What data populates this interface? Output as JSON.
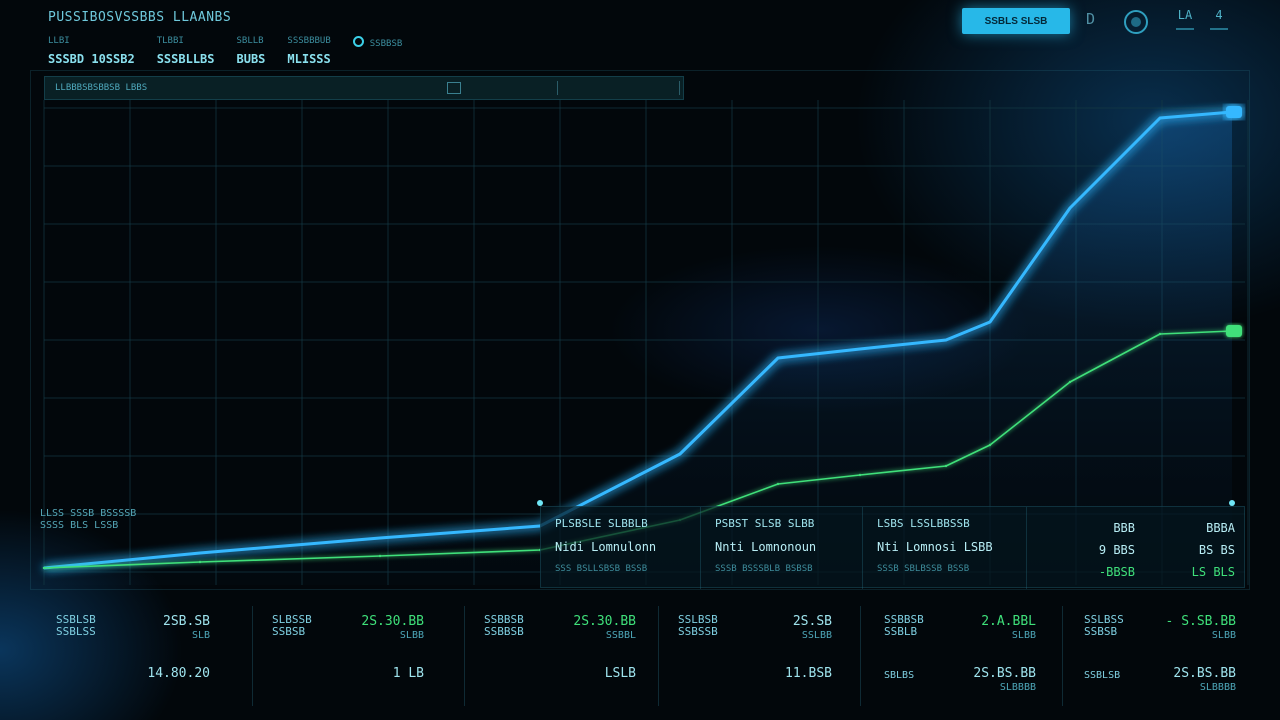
{
  "header": {
    "title": "PUSSIBOSVSSBBS LLAANBS",
    "stats": [
      {
        "label": "LLBI",
        "value": "SSSBD 10SSB2"
      },
      {
        "label": "TLBBI",
        "value": "SSSBLLBS"
      },
      {
        "label": "SBLLB",
        "value": "BUBS"
      },
      {
        "label": "SSSBBBUB",
        "value": "MLISSS"
      },
      {
        "label": "SSBBSB",
        "value": ""
      }
    ],
    "primary_button": "SSBLS SLSB",
    "d_icon": "D",
    "mini_a": "LA",
    "mini_b": "4"
  },
  "filter": {
    "text": "LLBBBSBSBBSB LBBS"
  },
  "axis": {
    "left_label_1": "LLSS SSSB BSSSSB",
    "left_label_2": "SSSS BLS LSSB"
  },
  "info_table": {
    "cells": [
      {
        "t1": "PLSBSLE SLBBLB",
        "t2": "Nidi Lomnulonn",
        "t3": "SSS BSLLSBSB BSSB"
      },
      {
        "t1": "PSBST SLSB SLBB",
        "t2": "Nnti Lomnonoun",
        "t3": "SSSB BSSSBLB BSBSB"
      },
      {
        "t1": "LSBS LSSLBBSSB",
        "t2": "Nti Lomnosi LSBB",
        "t3": "SSSB SBLBSSB BSSB"
      }
    ],
    "col_a": [
      "BBB",
      "9 BBS",
      "-BBSB"
    ],
    "col_b": [
      "BBBA",
      "BS BS",
      "LS BLS"
    ]
  },
  "kpis": [
    {
      "name": "SSBLSB SSBLSS",
      "big": "2SB.SB",
      "sub": "SLB",
      "bottom": "14.80.20",
      "bottom2": ""
    },
    {
      "name": "SLBSSB SSBSB",
      "big": "2S.30.BB",
      "sub": "SLBB",
      "bottom": "1 LB",
      "bottom2": ""
    },
    {
      "name": "SSBBSB SSBBSB",
      "big": "2S.30.BB",
      "sub": "SSBBL",
      "bottom": "LSLB",
      "bottom2": ""
    },
    {
      "name": "SSLBSB SSBSSB",
      "big": "2S.SB",
      "sub": "SSLBB",
      "bottom": "11.BSB",
      "bottom2": ""
    },
    {
      "name": "SSBBSB SSBLB",
      "big": "2.A.BBL",
      "sub": "SLBB",
      "bottom": "2S.BS.BB",
      "bottom2": "SLBBBB",
      "bl": "SBLBS"
    },
    {
      "name": "SSLBSS SSBSB",
      "big": "- S.SB.BB",
      "sub": "SLBB",
      "bottom": "2S.BS.BB",
      "bottom2": "SLBBBB",
      "bl": "SSBLSB"
    }
  ],
  "chart_data": {
    "type": "line",
    "x": [
      0,
      1,
      2,
      3,
      4,
      5,
      6,
      7,
      8,
      9,
      10,
      11
    ],
    "series": [
      {
        "color": "#35b8ff",
        "values": [
          0,
          5,
          10,
          14,
          38,
          70,
          73,
          76,
          82,
          120,
          150,
          152
        ]
      },
      {
        "color": "#3fe07a",
        "values": [
          0,
          2,
          4,
          6,
          16,
          28,
          31,
          34,
          41,
          62,
          78,
          79
        ]
      }
    ],
    "ylim": [
      0,
      160
    ],
    "grid": true,
    "legend": "none"
  },
  "colors": {
    "accent": "#27b8e8",
    "line_blue": "#35b8ff",
    "line_green": "#3fe07a",
    "bg": "#02070b"
  }
}
